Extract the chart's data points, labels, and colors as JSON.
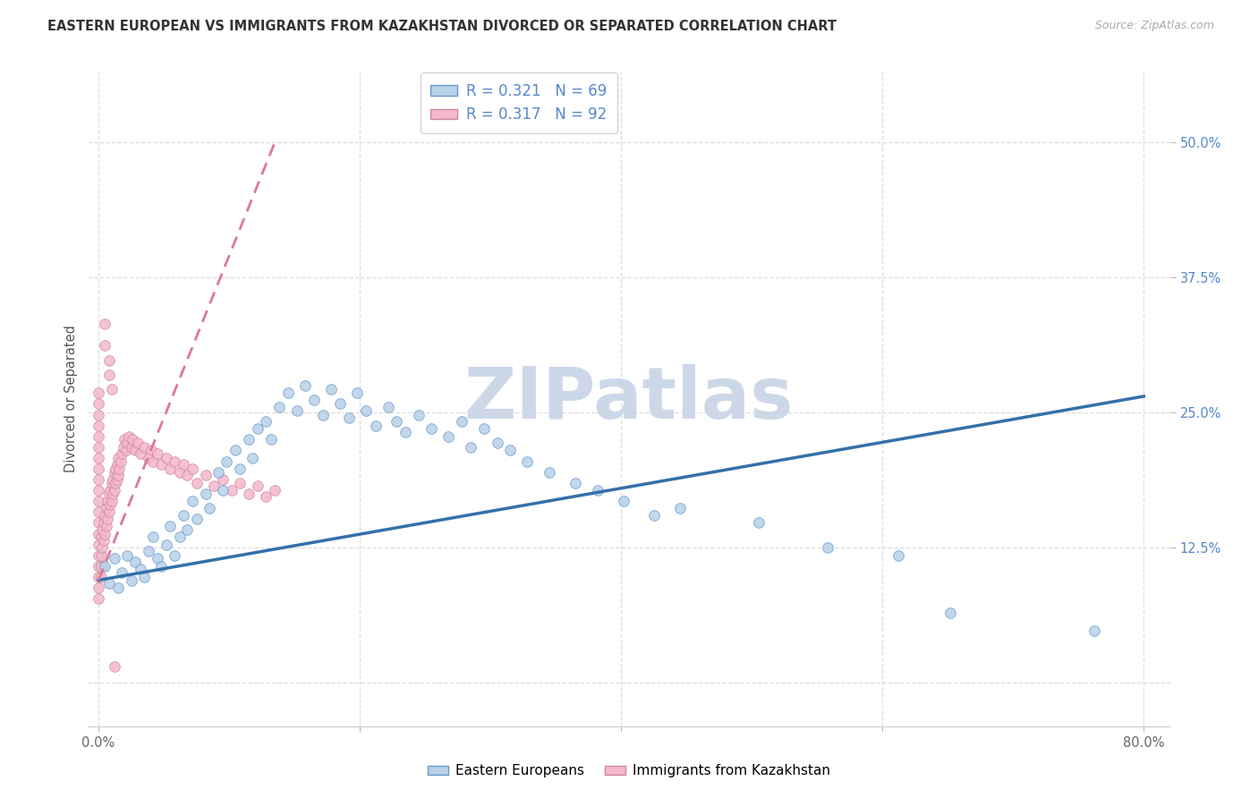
{
  "title": "EASTERN EUROPEAN VS IMMIGRANTS FROM KAZAKHSTAN DIVORCED OR SEPARATED CORRELATION CHART",
  "source": "Source: ZipAtlas.com",
  "ylabel": "Divorced or Separated",
  "legend_label1": "Eastern Europeans",
  "legend_label2": "Immigrants from Kazakhstan",
  "R1": "0.321",
  "N1": "69",
  "R2": "0.317",
  "N2": "92",
  "xlim": [
    -0.008,
    0.82
  ],
  "ylim": [
    -0.04,
    0.565
  ],
  "ytick_vals": [
    0.0,
    0.125,
    0.25,
    0.375,
    0.5
  ],
  "xtick_vals": [
    0.0,
    0.2,
    0.4,
    0.6,
    0.8
  ],
  "color_blue_fill": "#b8d0e8",
  "color_blue_edge": "#6699cc",
  "color_blue_line": "#3370aa",
  "color_pink_fill": "#f5b8cc",
  "color_pink_edge": "#cc8899",
  "color_pink_line": "#dd7799",
  "watermark_text": "ZIPatlas",
  "watermark_color": "#ccd8e8",
  "background": "#ffffff",
  "grid_color": "#dddddd",
  "title_color": "#333333",
  "source_color": "#aaaaaa",
  "right_tick_color": "#5588cc",
  "bottom_tick_color": "#666666",
  "blue_line_x0": 0.0,
  "blue_line_x1": 0.8,
  "blue_line_y0": 0.095,
  "blue_line_y1": 0.265,
  "pink_line_x0": 0.0,
  "pink_line_x1": 0.135,
  "pink_line_y0": 0.095,
  "pink_line_y1": 0.5,
  "blue_x": [
    0.005,
    0.008,
    0.012,
    0.015,
    0.018,
    0.022,
    0.025,
    0.028,
    0.032,
    0.035,
    0.038,
    0.042,
    0.045,
    0.048,
    0.052,
    0.055,
    0.058,
    0.062,
    0.065,
    0.068,
    0.072,
    0.075,
    0.082,
    0.085,
    0.092,
    0.095,
    0.098,
    0.105,
    0.108,
    0.115,
    0.118,
    0.122,
    0.128,
    0.132,
    0.138,
    0.145,
    0.152,
    0.158,
    0.165,
    0.172,
    0.178,
    0.185,
    0.192,
    0.198,
    0.205,
    0.212,
    0.222,
    0.228,
    0.235,
    0.245,
    0.255,
    0.268,
    0.278,
    0.285,
    0.295,
    0.305,
    0.315,
    0.328,
    0.345,
    0.365,
    0.382,
    0.402,
    0.425,
    0.445,
    0.505,
    0.558,
    0.612,
    0.652,
    0.762
  ],
  "blue_y": [
    0.108,
    0.092,
    0.115,
    0.088,
    0.102,
    0.118,
    0.095,
    0.112,
    0.105,
    0.098,
    0.122,
    0.135,
    0.115,
    0.108,
    0.128,
    0.145,
    0.118,
    0.135,
    0.155,
    0.142,
    0.168,
    0.152,
    0.175,
    0.162,
    0.195,
    0.178,
    0.205,
    0.215,
    0.198,
    0.225,
    0.208,
    0.235,
    0.242,
    0.225,
    0.255,
    0.268,
    0.252,
    0.275,
    0.262,
    0.248,
    0.272,
    0.258,
    0.245,
    0.268,
    0.252,
    0.238,
    0.255,
    0.242,
    0.232,
    0.248,
    0.235,
    0.228,
    0.242,
    0.218,
    0.235,
    0.222,
    0.215,
    0.205,
    0.195,
    0.185,
    0.178,
    0.168,
    0.155,
    0.162,
    0.148,
    0.125,
    0.118,
    0.065,
    0.048
  ],
  "pink_x": [
    0.0,
    0.0,
    0.0,
    0.0,
    0.0,
    0.0,
    0.0,
    0.0,
    0.0,
    0.0,
    0.0,
    0.0,
    0.0,
    0.0,
    0.0,
    0.0,
    0.0,
    0.0,
    0.0,
    0.0,
    0.002,
    0.002,
    0.002,
    0.002,
    0.003,
    0.003,
    0.004,
    0.004,
    0.005,
    0.005,
    0.006,
    0.006,
    0.007,
    0.007,
    0.008,
    0.008,
    0.009,
    0.009,
    0.01,
    0.01,
    0.011,
    0.011,
    0.012,
    0.012,
    0.013,
    0.013,
    0.014,
    0.014,
    0.015,
    0.015,
    0.016,
    0.017,
    0.018,
    0.019,
    0.02,
    0.021,
    0.022,
    0.023,
    0.025,
    0.026,
    0.028,
    0.03,
    0.032,
    0.035,
    0.038,
    0.04,
    0.042,
    0.045,
    0.048,
    0.052,
    0.055,
    0.058,
    0.062,
    0.065,
    0.068,
    0.072,
    0.075,
    0.082,
    0.088,
    0.095,
    0.102,
    0.108,
    0.115,
    0.122,
    0.128,
    0.135,
    0.005,
    0.005,
    0.008,
    0.008,
    0.01,
    0.012
  ],
  "pink_y": [
    0.118,
    0.108,
    0.098,
    0.088,
    0.078,
    0.128,
    0.138,
    0.148,
    0.158,
    0.168,
    0.178,
    0.188,
    0.198,
    0.208,
    0.218,
    0.228,
    0.238,
    0.248,
    0.258,
    0.268,
    0.118,
    0.108,
    0.098,
    0.135,
    0.125,
    0.142,
    0.132,
    0.148,
    0.138,
    0.155,
    0.145,
    0.162,
    0.152,
    0.168,
    0.158,
    0.175,
    0.165,
    0.178,
    0.168,
    0.185,
    0.175,
    0.188,
    0.178,
    0.195,
    0.185,
    0.198,
    0.188,
    0.202,
    0.192,
    0.208,
    0.198,
    0.205,
    0.212,
    0.218,
    0.225,
    0.215,
    0.222,
    0.228,
    0.218,
    0.225,
    0.215,
    0.222,
    0.212,
    0.218,
    0.208,
    0.215,
    0.205,
    0.212,
    0.202,
    0.208,
    0.198,
    0.205,
    0.195,
    0.202,
    0.192,
    0.198,
    0.185,
    0.192,
    0.182,
    0.188,
    0.178,
    0.185,
    0.175,
    0.182,
    0.172,
    0.178,
    0.332,
    0.312,
    0.298,
    0.285,
    0.272,
    0.015
  ]
}
